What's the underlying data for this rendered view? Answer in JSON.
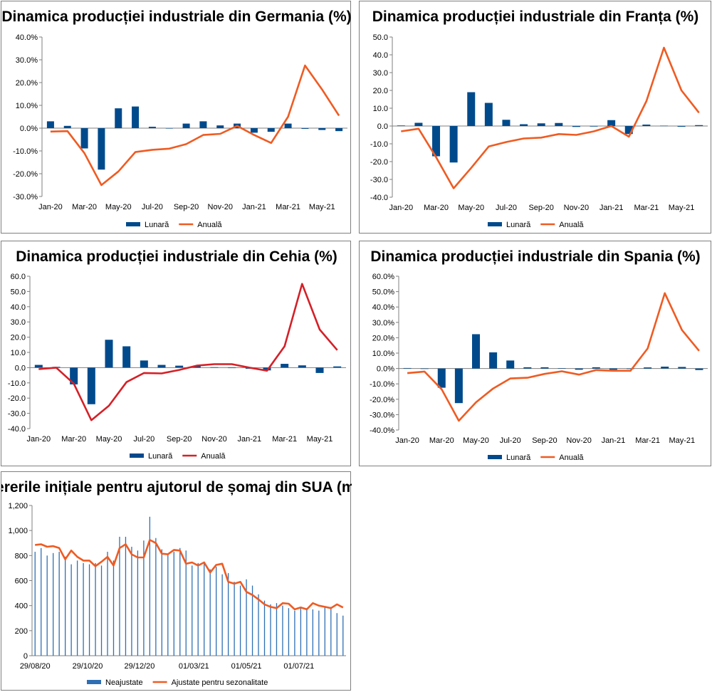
{
  "chart_data": [
    {
      "type": "bar",
      "title": "Dinamica producției industriale din Germania (%)",
      "format": "percent1",
      "ylim": [
        -30,
        40
      ],
      "yticks": [
        -30,
        -20,
        -10,
        0,
        10,
        20,
        30,
        40
      ],
      "categories": [
        "Jan-20",
        "Feb-20",
        "Mar-20",
        "Apr-20",
        "May-20",
        "Jun-20",
        "Jul-20",
        "Aug-20",
        "Sep-20",
        "Oct-20",
        "Nov-20",
        "Dec-20",
        "Jan-21",
        "Feb-21",
        "Mar-21",
        "Apr-21",
        "May-21",
        "Jun-21"
      ],
      "xtick_labels": [
        "Jan-20",
        "Mar-20",
        "May-20",
        "Jul-20",
        "Sep-20",
        "Nov-20",
        "Jan-21",
        "Mar-21",
        "May-21"
      ],
      "series": [
        {
          "name": "Lunară",
          "kind": "bar",
          "color": "#004a8c",
          "values": [
            3.0,
            1.0,
            -8.9,
            -18.2,
            8.7,
            9.5,
            0.6,
            0.0,
            2.0,
            3.0,
            1.2,
            2.0,
            -2.0,
            -1.6,
            2.0,
            -0.3,
            -0.8,
            -1.3
          ]
        },
        {
          "name": "Anuală",
          "kind": "line",
          "color": "#ef5b22",
          "values": [
            -1.5,
            -1.3,
            -11.0,
            -25.0,
            -19.0,
            -10.5,
            -9.5,
            -9.0,
            -7.0,
            -3.0,
            -2.5,
            1.0,
            -3.0,
            -6.5,
            5.0,
            27.5,
            17.0,
            5.5
          ]
        }
      ]
    },
    {
      "type": "bar",
      "title": "Dinamica producției industriale din Franța (%)",
      "format": "fixed1",
      "ylim": [
        -40,
        50
      ],
      "yticks": [
        -40,
        -30,
        -20,
        -10,
        0,
        10,
        20,
        30,
        40,
        50
      ],
      "categories": [
        "Jan-20",
        "Feb-20",
        "Mar-20",
        "Apr-20",
        "May-20",
        "Jun-20",
        "Jul-20",
        "Aug-20",
        "Sep-20",
        "Oct-20",
        "Nov-20",
        "Dec-20",
        "Jan-21",
        "Feb-21",
        "Mar-21",
        "Apr-21",
        "May-21",
        "Jun-21"
      ],
      "xtick_labels": [
        "Jan-20",
        "Mar-20",
        "May-20",
        "Jul-20",
        "Sep-20",
        "Nov-20",
        "Jan-21",
        "Mar-21",
        "May-21"
      ],
      "series": [
        {
          "name": "Lunară",
          "kind": "bar",
          "color": "#004a8c",
          "values": [
            0.3,
            1.8,
            -17.0,
            -20.5,
            19.0,
            13.0,
            3.5,
            1.0,
            1.5,
            1.7,
            -0.5,
            -0.3,
            3.3,
            -4.5,
            0.8,
            0.2,
            -0.4,
            0.5
          ]
        },
        {
          "name": "Anuală",
          "kind": "line",
          "color": "#ef5b22",
          "values": [
            -3.0,
            -1.5,
            -17.5,
            -35.0,
            -23.5,
            -11.5,
            -9.0,
            -7.0,
            -6.5,
            -4.5,
            -5.0,
            -3.0,
            0.0,
            -6.0,
            14.0,
            44.0,
            20.0,
            7.5
          ]
        }
      ]
    },
    {
      "type": "bar",
      "title": "Dinamica producției industriale din Cehia (%)",
      "format": "fixed1",
      "ylim": [
        -40,
        60
      ],
      "yticks": [
        -40,
        -30,
        -20,
        -10,
        0,
        10,
        20,
        30,
        40,
        50,
        60
      ],
      "categories": [
        "Jan-20",
        "Feb-20",
        "Mar-20",
        "Apr-20",
        "May-20",
        "Jun-20",
        "Jul-20",
        "Aug-20",
        "Sep-20",
        "Oct-20",
        "Nov-20",
        "Dec-20",
        "Jan-21",
        "Feb-21",
        "Mar-21",
        "Apr-21",
        "May-21",
        "Jun-21"
      ],
      "xtick_labels": [
        "Jan-20",
        "Mar-20",
        "May-20",
        "Jul-20",
        "Sep-20",
        "Nov-20",
        "Jan-21",
        "Mar-21",
        "May-21"
      ],
      "series": [
        {
          "name": "Lunară",
          "kind": "bar",
          "color": "#004a8c",
          "values": [
            1.8,
            0.5,
            -11.0,
            -24.0,
            18.3,
            14.0,
            4.7,
            1.8,
            1.3,
            1.0,
            0.3,
            -0.3,
            -0.7,
            -1.8,
            2.5,
            1.5,
            -3.5,
            0.8
          ]
        },
        {
          "name": "Anuală",
          "kind": "line",
          "color": "#d42027",
          "values": [
            -1.0,
            0.0,
            -10.5,
            -34.5,
            -25.0,
            -9.5,
            -3.5,
            -3.8,
            -1.5,
            1.3,
            2.3,
            2.3,
            0.0,
            -2.0,
            14.0,
            55.0,
            25.0,
            11.5
          ]
        }
      ]
    },
    {
      "type": "bar",
      "title": "Dinamica producției industriale din Spania (%)",
      "format": "percent1",
      "ylim": [
        -40,
        60
      ],
      "yticks": [
        -40,
        -30,
        -20,
        -10,
        0,
        10,
        20,
        30,
        40,
        50,
        60
      ],
      "categories": [
        "Jan-20",
        "Feb-20",
        "Mar-20",
        "Apr-20",
        "May-20",
        "Jun-20",
        "Jul-20",
        "Aug-20",
        "Sep-20",
        "Oct-20",
        "Nov-20",
        "Dec-20",
        "Jan-21",
        "Feb-21",
        "Mar-21",
        "Apr-21",
        "May-21",
        "Jun-21"
      ],
      "xtick_labels": [
        "Jan-20",
        "Mar-20",
        "May-20",
        "Jul-20",
        "Sep-20",
        "Nov-20",
        "Jan-21",
        "Mar-21",
        "May-21"
      ],
      "series": [
        {
          "name": "Lunară",
          "kind": "bar",
          "color": "#004a8c",
          "values": [
            0.3,
            -0.3,
            -12.5,
            -22.5,
            22.3,
            10.5,
            5.2,
            0.8,
            0.8,
            0.2,
            -0.8,
            0.8,
            -0.8,
            -0.3,
            0.7,
            1.2,
            1.0,
            -1.0
          ]
        },
        {
          "name": "Anuală",
          "kind": "line",
          "color": "#ef5b22",
          "values": [
            -3.0,
            -2.0,
            -13.5,
            -34.0,
            -22.0,
            -13.0,
            -6.5,
            -6.0,
            -3.5,
            -1.8,
            -4.0,
            -1.0,
            -1.5,
            -1.5,
            13.0,
            49.0,
            25.0,
            11.5
          ]
        }
      ]
    },
    {
      "type": "bar",
      "title": "Cererile inițiale pentru ajutorul de șomaj din SUA (mii)",
      "format": "thousands",
      "ylim": [
        0,
        1200
      ],
      "yticks": [
        0,
        200,
        400,
        600,
        800,
        1000,
        1200
      ],
      "categories": [
        "29/08/20",
        "05/09/20",
        "12/09/20",
        "19/09/20",
        "26/09/20",
        "03/10/20",
        "10/10/20",
        "17/10/20",
        "24/10/20",
        "31/10/20",
        "07/11/20",
        "14/11/20",
        "21/11/20",
        "28/11/20",
        "05/12/20",
        "12/12/20",
        "19/12/20",
        "26/12/20",
        "02/01/21",
        "09/01/21",
        "16/01/21",
        "23/01/21",
        "30/01/21",
        "06/02/21",
        "13/02/21",
        "20/02/21",
        "27/02/21",
        "06/03/21",
        "13/03/21",
        "20/03/21",
        "27/03/21",
        "03/04/21",
        "10/04/21",
        "17/04/21",
        "24/04/21",
        "01/05/21",
        "08/05/21",
        "15/05/21",
        "22/05/21",
        "29/05/21",
        "05/06/21",
        "12/06/21",
        "19/06/21",
        "26/06/21",
        "03/07/21",
        "10/07/21",
        "17/07/21",
        "24/07/21",
        "31/07/21",
        "07/08/21",
        "14/08/21",
        "21/08/21"
      ],
      "xtick_labels": [
        "29/08/20",
        "29/10/20",
        "29/12/20",
        "01/03/21",
        "01/05/21",
        "01/07/21"
      ],
      "series": [
        {
          "name": "Neajustate",
          "kind": "bar",
          "color": "#2e6fb4",
          "values": [
            830,
            860,
            800,
            820,
            830,
            790,
            730,
            760,
            740,
            730,
            740,
            720,
            830,
            760,
            950,
            950,
            870,
            840,
            920,
            1110,
            940,
            850,
            810,
            830,
            860,
            840,
            720,
            740,
            740,
            690,
            710,
            650,
            660,
            590,
            560,
            610,
            560,
            490,
            440,
            410,
            420,
            400,
            380,
            360,
            390,
            380,
            370,
            360,
            390,
            390,
            340,
            320
          ]
        },
        {
          "name": "Ajustate pentru sezonalitate",
          "kind": "line",
          "color": "#ef5b22",
          "values": [
            885,
            890,
            870,
            875,
            860,
            770,
            840,
            790,
            760,
            760,
            715,
            750,
            790,
            720,
            860,
            890,
            810,
            785,
            785,
            925,
            900,
            815,
            810,
            845,
            840,
            735,
            745,
            720,
            745,
            665,
            725,
            735,
            590,
            575,
            590,
            510,
            485,
            450,
            410,
            390,
            380,
            420,
            415,
            370,
            385,
            370,
            420,
            400,
            390,
            380,
            410,
            385
          ]
        }
      ]
    }
  ]
}
